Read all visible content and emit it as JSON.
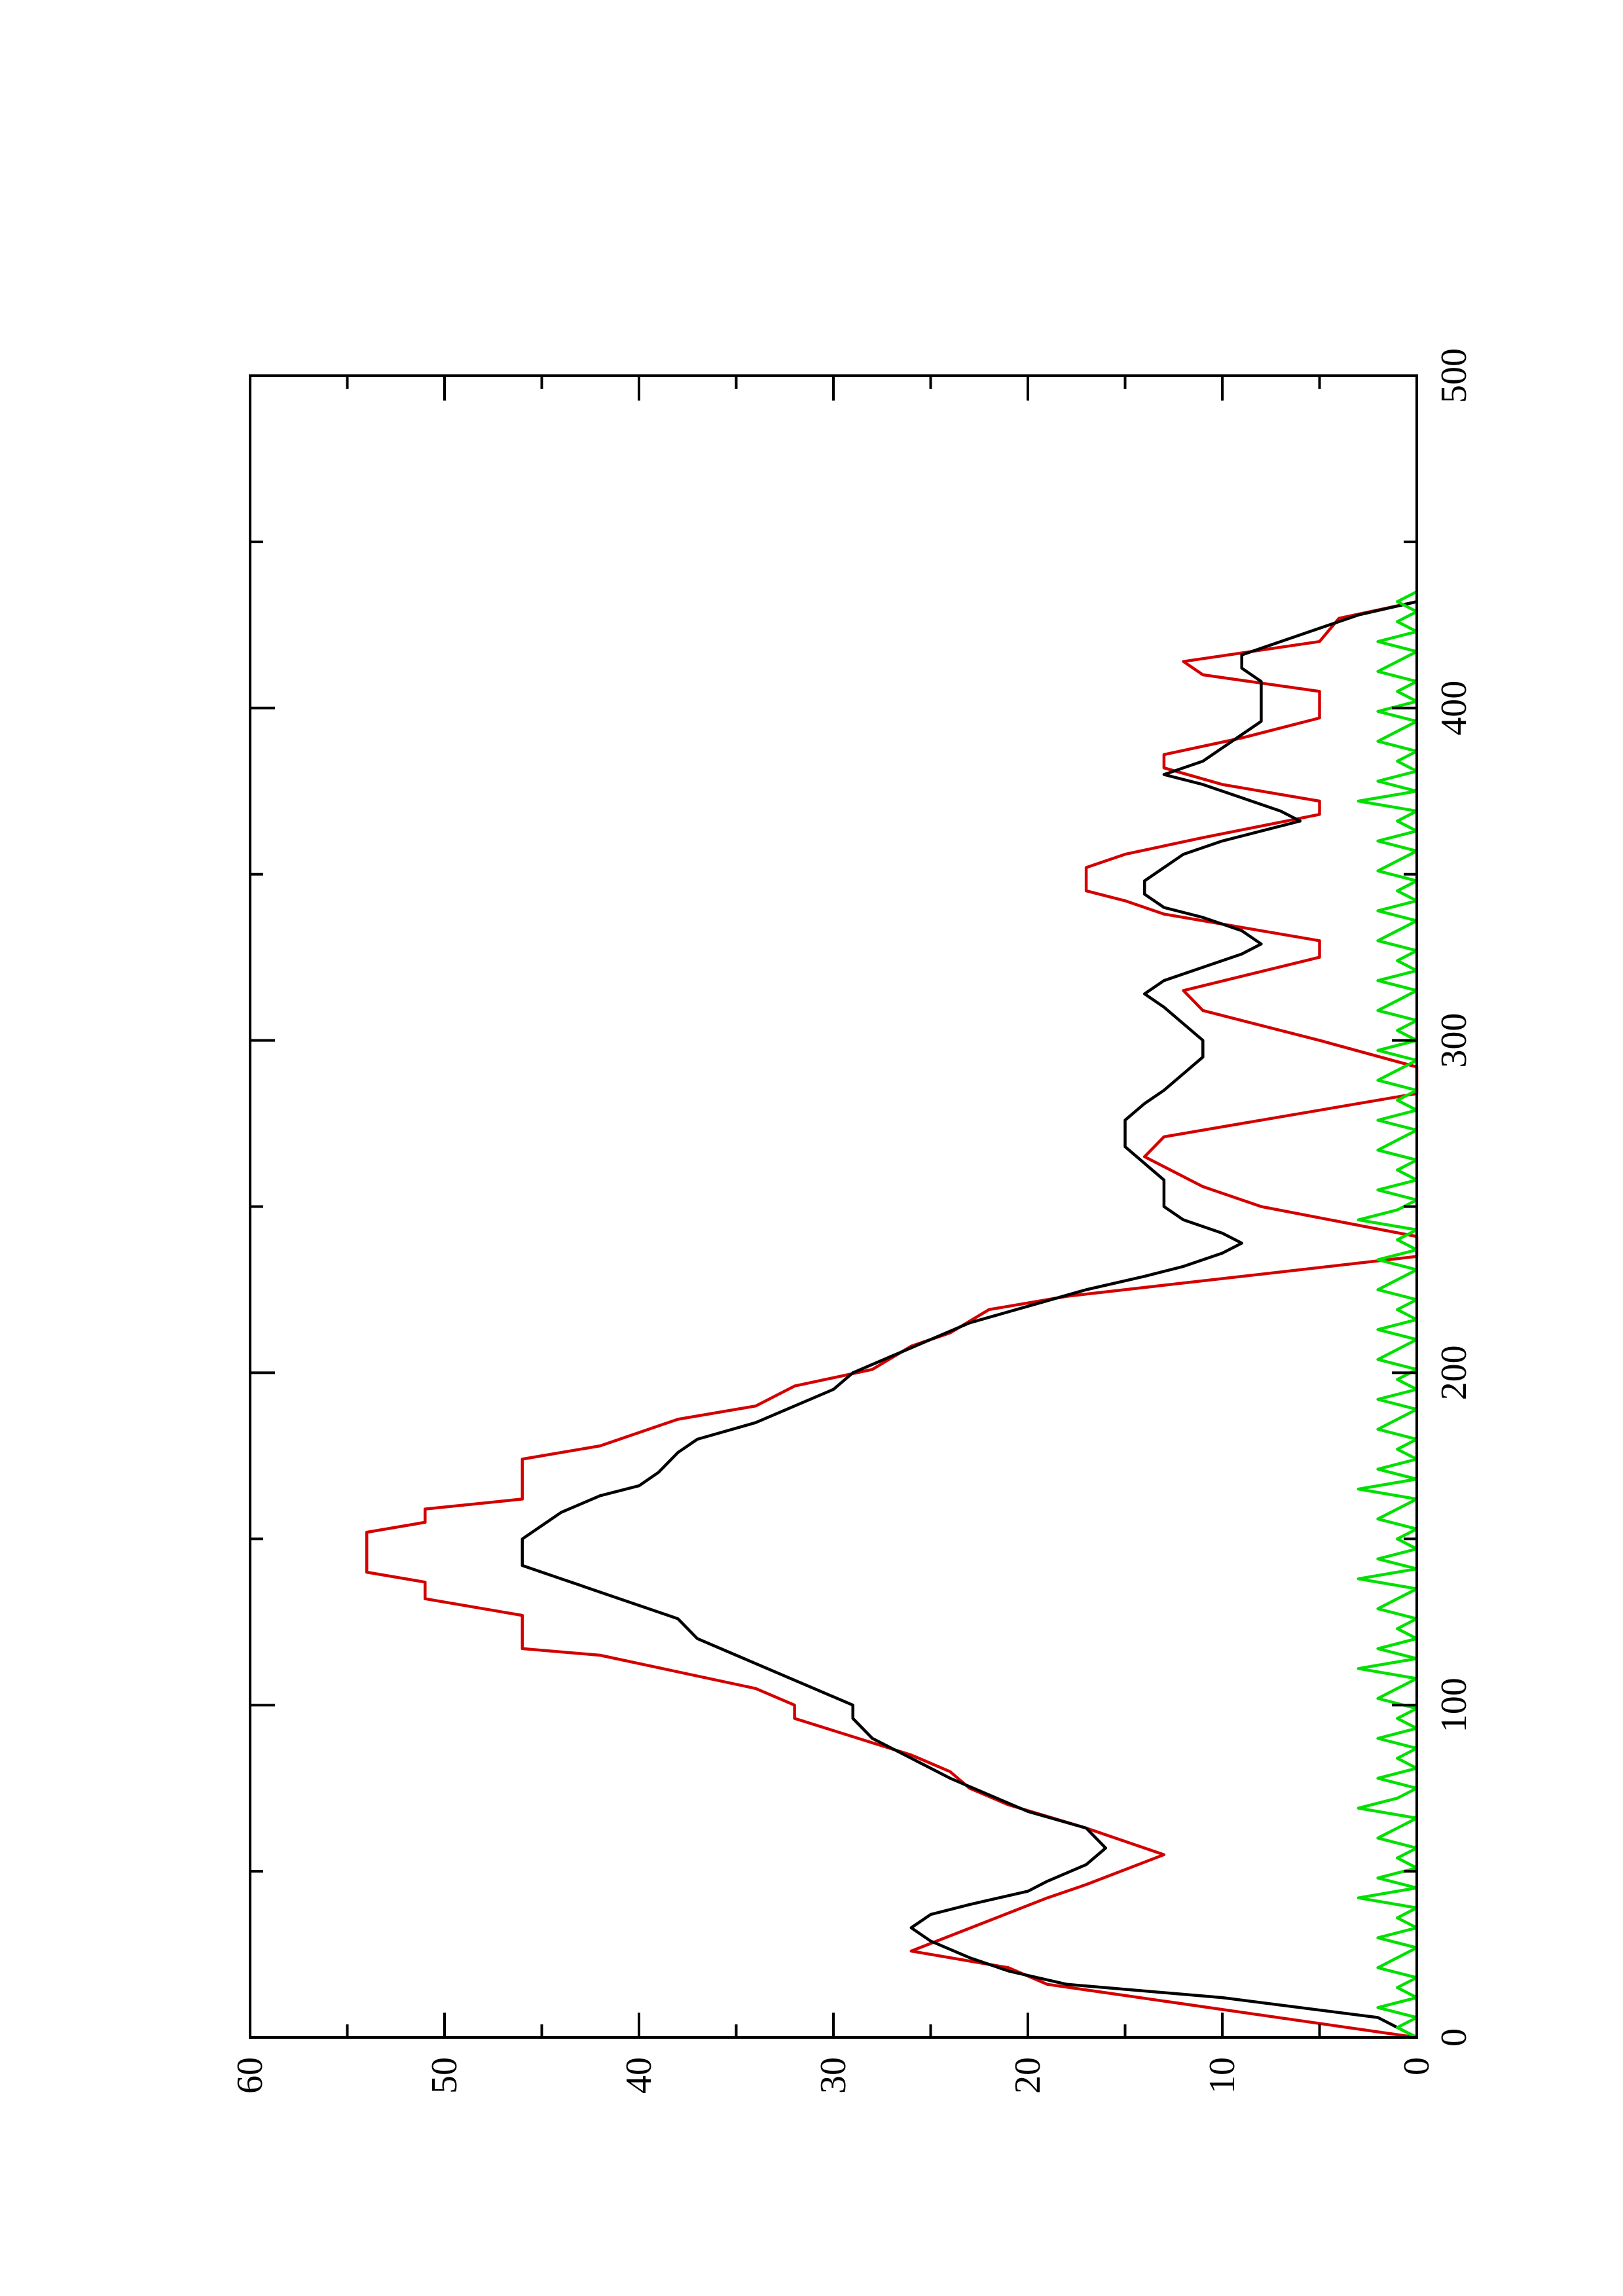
{
  "chart_data": {
    "type": "line",
    "orientation": "rotated-90-counterclockwise",
    "title": "",
    "xlabel": "",
    "ylabel": "",
    "xlim": [
      0,
      500
    ],
    "ylim": [
      0,
      60
    ],
    "x_ticks": [
      0,
      100,
      200,
      300,
      400,
      500
    ],
    "x_tick_labels": [
      "0",
      "100",
      "200",
      "300",
      "400",
      "500"
    ],
    "x_minor_ticks": [
      50,
      150,
      250,
      350,
      450
    ],
    "y_ticks": [
      0,
      10,
      20,
      30,
      40,
      50,
      60
    ],
    "y_tick_labels": [
      "0",
      "10",
      "20",
      "30",
      "40",
      "50",
      "60"
    ],
    "y_minor_ticks": [
      5,
      15,
      25,
      35,
      45,
      55
    ],
    "grid": false,
    "legend": "none",
    "series": [
      {
        "color": "#d40000",
        "style": "stepped-linear",
        "points": [
          [
            0,
            0
          ],
          [
            16,
            19
          ],
          [
            21,
            21
          ],
          [
            26,
            26
          ],
          [
            42,
            19
          ],
          [
            46,
            17
          ],
          [
            55,
            13
          ],
          [
            63,
            17
          ],
          [
            70,
            21
          ],
          [
            75,
            23
          ],
          [
            80,
            24
          ],
          [
            85,
            26
          ],
          [
            96,
            32
          ],
          [
            100,
            32
          ],
          [
            105,
            34
          ],
          [
            115,
            42
          ],
          [
            117,
            46
          ],
          [
            127,
            46
          ],
          [
            132,
            51
          ],
          [
            137,
            51
          ],
          [
            140,
            54
          ],
          [
            152,
            54
          ],
          [
            155,
            51
          ],
          [
            159,
            51
          ],
          [
            162,
            46
          ],
          [
            174,
            46
          ],
          [
            178,
            42
          ],
          [
            186,
            38
          ],
          [
            190,
            34
          ],
          [
            196,
            32
          ],
          [
            201,
            28
          ],
          [
            208,
            26
          ],
          [
            212,
            24
          ],
          [
            219,
            22
          ],
          [
            223,
            18
          ],
          [
            235,
            0
          ],
          [
            241,
            0
          ],
          [
            250,
            8
          ],
          [
            256,
            11
          ],
          [
            265,
            14
          ],
          [
            271,
            13
          ],
          [
            284,
            0
          ],
          [
            292,
            0
          ],
          [
            300,
            5
          ],
          [
            309,
            11
          ],
          [
            315,
            12
          ],
          [
            325,
            5
          ],
          [
            330,
            5
          ],
          [
            338,
            13
          ],
          [
            342,
            15
          ],
          [
            345,
            17
          ],
          [
            352,
            17
          ],
          [
            356,
            15
          ],
          [
            361,
            11
          ],
          [
            368,
            5
          ],
          [
            372,
            5
          ],
          [
            377,
            10
          ],
          [
            382,
            13
          ],
          [
            386,
            13
          ],
          [
            391,
            9
          ],
          [
            397,
            5
          ],
          [
            405,
            5
          ],
          [
            410,
            11
          ],
          [
            414,
            12
          ],
          [
            420,
            5
          ],
          [
            427,
            4
          ],
          [
            432,
            0
          ]
        ]
      },
      {
        "color": "#000000",
        "style": "line",
        "points": [
          [
            0,
            0
          ],
          [
            6,
            2
          ],
          [
            12,
            10
          ],
          [
            16,
            18
          ],
          [
            20,
            21
          ],
          [
            24,
            23
          ],
          [
            29,
            25
          ],
          [
            33,
            26
          ],
          [
            37,
            25
          ],
          [
            40,
            23
          ],
          [
            44,
            20
          ],
          [
            47,
            19
          ],
          [
            52,
            17
          ],
          [
            57,
            16
          ],
          [
            63,
            17
          ],
          [
            68,
            20
          ],
          [
            73,
            22
          ],
          [
            78,
            24
          ],
          [
            84,
            26
          ],
          [
            90,
            28
          ],
          [
            96,
            29
          ],
          [
            100,
            29
          ],
          [
            105,
            31
          ],
          [
            110,
            33
          ],
          [
            115,
            35
          ],
          [
            120,
            37
          ],
          [
            126,
            38
          ],
          [
            132,
            41
          ],
          [
            138,
            44
          ],
          [
            142,
            46
          ],
          [
            146,
            46
          ],
          [
            150,
            46
          ],
          [
            154,
            45
          ],
          [
            158,
            44
          ],
          [
            163,
            42
          ],
          [
            166,
            40
          ],
          [
            170,
            39
          ],
          [
            176,
            38
          ],
          [
            180,
            37
          ],
          [
            185,
            34
          ],
          [
            190,
            32
          ],
          [
            195,
            30
          ],
          [
            200,
            29
          ],
          [
            205,
            27
          ],
          [
            210,
            25
          ],
          [
            215,
            23
          ],
          [
            220,
            20
          ],
          [
            225,
            17
          ],
          [
            229,
            14
          ],
          [
            232,
            12
          ],
          [
            236,
            10
          ],
          [
            239,
            9
          ],
          [
            242,
            10
          ],
          [
            246,
            12
          ],
          [
            250,
            13
          ],
          [
            254,
            13
          ],
          [
            258,
            13
          ],
          [
            263,
            14
          ],
          [
            268,
            15
          ],
          [
            272,
            15
          ],
          [
            276,
            15
          ],
          [
            281,
            14
          ],
          [
            285,
            13
          ],
          [
            290,
            12
          ],
          [
            295,
            11
          ],
          [
            300,
            11
          ],
          [
            305,
            12
          ],
          [
            310,
            13
          ],
          [
            314,
            14
          ],
          [
            318,
            13
          ],
          [
            322,
            11
          ],
          [
            326,
            9
          ],
          [
            329,
            8
          ],
          [
            333,
            9
          ],
          [
            337,
            11
          ],
          [
            340,
            13
          ],
          [
            344,
            14
          ],
          [
            348,
            14
          ],
          [
            352,
            13
          ],
          [
            356,
            12
          ],
          [
            360,
            10
          ],
          [
            363,
            8
          ],
          [
            366,
            6
          ],
          [
            369,
            7
          ],
          [
            373,
            9
          ],
          [
            377,
            11
          ],
          [
            380,
            13
          ],
          [
            384,
            11
          ],
          [
            388,
            10
          ],
          [
            392,
            9
          ],
          [
            396,
            8
          ],
          [
            400,
            8
          ],
          [
            404,
            8
          ],
          [
            408,
            8
          ],
          [
            412,
            9
          ],
          [
            416,
            9
          ],
          [
            420,
            7
          ],
          [
            424,
            5
          ],
          [
            428,
            3
          ],
          [
            432,
            0
          ]
        ]
      },
      {
        "color": "#00e000",
        "style": "line",
        "points": [
          [
            0,
            0
          ],
          [
            3,
            1
          ],
          [
            6,
            0
          ],
          [
            9,
            2
          ],
          [
            12,
            0
          ],
          [
            15,
            1
          ],
          [
            18,
            0
          ],
          [
            21,
            2
          ],
          [
            24,
            1
          ],
          [
            27,
            0
          ],
          [
            30,
            2
          ],
          [
            33,
            0
          ],
          [
            36,
            1
          ],
          [
            39,
            0
          ],
          [
            42,
            3
          ],
          [
            45,
            0
          ],
          [
            48,
            2
          ],
          [
            51,
            0
          ],
          [
            54,
            1
          ],
          [
            57,
            0
          ],
          [
            60,
            2
          ],
          [
            63,
            1
          ],
          [
            66,
            0
          ],
          [
            69,
            3
          ],
          [
            72,
            1
          ],
          [
            75,
            0
          ],
          [
            78,
            2
          ],
          [
            81,
            0
          ],
          [
            84,
            1
          ],
          [
            87,
            0
          ],
          [
            90,
            2
          ],
          [
            93,
            0
          ],
          [
            96,
            1
          ],
          [
            99,
            0
          ],
          [
            102,
            2
          ],
          [
            105,
            1
          ],
          [
            108,
            0
          ],
          [
            111,
            3
          ],
          [
            114,
            0
          ],
          [
            117,
            2
          ],
          [
            120,
            0
          ],
          [
            123,
            1
          ],
          [
            126,
            0
          ],
          [
            129,
            2
          ],
          [
            132,
            1
          ],
          [
            135,
            0
          ],
          [
            138,
            3
          ],
          [
            141,
            0
          ],
          [
            144,
            2
          ],
          [
            147,
            0
          ],
          [
            150,
            1
          ],
          [
            153,
            0
          ],
          [
            156,
            2
          ],
          [
            159,
            1
          ],
          [
            162,
            0
          ],
          [
            165,
            3
          ],
          [
            168,
            0
          ],
          [
            171,
            2
          ],
          [
            174,
            0
          ],
          [
            177,
            1
          ],
          [
            180,
            0
          ],
          [
            183,
            2
          ],
          [
            186,
            1
          ],
          [
            189,
            0
          ],
          [
            192,
            2
          ],
          [
            195,
            0
          ],
          [
            198,
            1
          ],
          [
            201,
            0
          ],
          [
            204,
            2
          ],
          [
            207,
            1
          ],
          [
            210,
            0
          ],
          [
            213,
            2
          ],
          [
            216,
            0
          ],
          [
            219,
            1
          ],
          [
            222,
            0
          ],
          [
            225,
            2
          ],
          [
            228,
            1
          ],
          [
            231,
            0
          ],
          [
            234,
            2
          ],
          [
            237,
            0
          ],
          [
            240,
            1
          ],
          [
            243,
            0
          ],
          [
            246,
            3
          ],
          [
            249,
            1
          ],
          [
            252,
            0
          ],
          [
            255,
            2
          ],
          [
            258,
            0
          ],
          [
            261,
            1
          ],
          [
            264,
            0
          ],
          [
            267,
            2
          ],
          [
            270,
            1
          ],
          [
            273,
            0
          ],
          [
            276,
            2
          ],
          [
            279,
            0
          ],
          [
            282,
            1
          ],
          [
            285,
            0
          ],
          [
            288,
            2
          ],
          [
            291,
            1
          ],
          [
            294,
            0
          ],
          [
            297,
            2
          ],
          [
            300,
            0
          ],
          [
            303,
            1
          ],
          [
            306,
            0
          ],
          [
            309,
            2
          ],
          [
            312,
            1
          ],
          [
            315,
            0
          ],
          [
            318,
            2
          ],
          [
            321,
            0
          ],
          [
            324,
            1
          ],
          [
            327,
            0
          ],
          [
            330,
            2
          ],
          [
            333,
            1
          ],
          [
            336,
            0
          ],
          [
            339,
            2
          ],
          [
            342,
            0
          ],
          [
            345,
            1
          ],
          [
            348,
            0
          ],
          [
            351,
            2
          ],
          [
            354,
            1
          ],
          [
            357,
            0
          ],
          [
            360,
            2
          ],
          [
            363,
            0
          ],
          [
            366,
            1
          ],
          [
            369,
            0
          ],
          [
            372,
            3
          ],
          [
            375,
            0
          ],
          [
            378,
            2
          ],
          [
            381,
            0
          ],
          [
            384,
            1
          ],
          [
            387,
            0
          ],
          [
            390,
            2
          ],
          [
            393,
            1
          ],
          [
            396,
            0
          ],
          [
            399,
            2
          ],
          [
            402,
            0
          ],
          [
            405,
            1
          ],
          [
            408,
            0
          ],
          [
            411,
            2
          ],
          [
            414,
            1
          ],
          [
            417,
            0
          ],
          [
            420,
            2
          ],
          [
            423,
            0
          ],
          [
            426,
            1
          ],
          [
            429,
            0
          ],
          [
            432,
            1
          ],
          [
            435,
            0
          ]
        ]
      }
    ]
  }
}
